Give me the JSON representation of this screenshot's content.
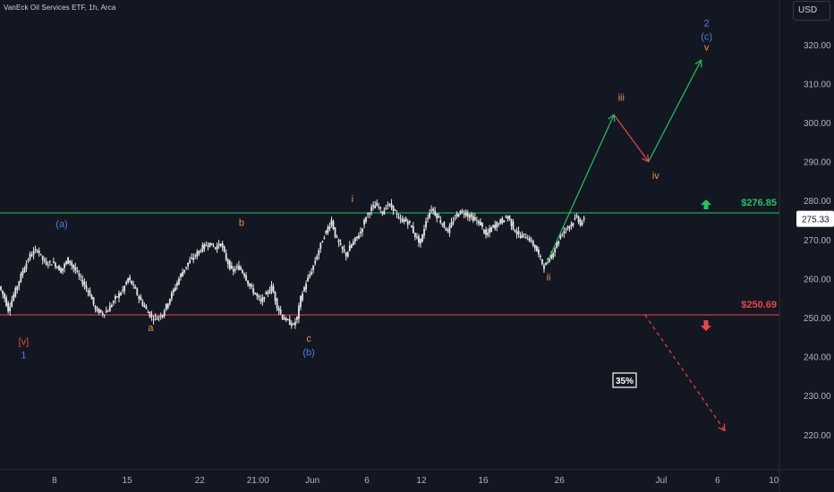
{
  "header": {
    "title": "VanEck Oil Services ETF, 1h, Arca",
    "currency": "USD"
  },
  "chart_data": {
    "type": "candlestick",
    "price_range": [
      212,
      328
    ],
    "y_ticks": [
      "220.00",
      "230.00",
      "240.00",
      "250.00",
      "260.00",
      "270.00",
      "280.00",
      "290.00",
      "300.00",
      "310.00",
      "320.00"
    ],
    "x_ticks": [
      "8",
      "15",
      "22",
      "21:00",
      "Jun",
      "6",
      "12",
      "16",
      "26",
      "Jul",
      "6",
      "10"
    ],
    "current_price": "275.33",
    "levels": [
      {
        "label": "$276.85",
        "value": 276.85,
        "color": "#22c55e"
      },
      {
        "label": "$250.69",
        "value": 250.69,
        "color": "#ef4444"
      }
    ],
    "price_path": [
      [
        0,
        258
      ],
      [
        0.3,
        255
      ],
      [
        0.5,
        252
      ],
      [
        0.9,
        257
      ],
      [
        1.3,
        262
      ],
      [
        1.7,
        266
      ],
      [
        2.1,
        267.5
      ],
      [
        2.5,
        264
      ],
      [
        3.0,
        264
      ],
      [
        3.4,
        262
      ],
      [
        3.8,
        265
      ],
      [
        4.2,
        262
      ],
      [
        4.6,
        259
      ],
      [
        5.0,
        256
      ],
      [
        5.3,
        252
      ],
      [
        5.7,
        251
      ],
      [
        6.0,
        252
      ],
      [
        6.4,
        255
      ],
      [
        6.8,
        257
      ],
      [
        7.1,
        260
      ],
      [
        7.4,
        258
      ],
      [
        7.7,
        255
      ],
      [
        8.1,
        252
      ],
      [
        8.4,
        250
      ],
      [
        8.7,
        250
      ],
      [
        9.0,
        251
      ],
      [
        9.3,
        254
      ],
      [
        9.7,
        258
      ],
      [
        10.0,
        261
      ],
      [
        10.4,
        264
      ],
      [
        10.8,
        266
      ],
      [
        11.2,
        268
      ],
      [
        11.5,
        269
      ],
      [
        11.9,
        268
      ],
      [
        12.2,
        269
      ],
      [
        12.5,
        265
      ],
      [
        12.8,
        262
      ],
      [
        13.2,
        263
      ],
      [
        13.5,
        261
      ],
      [
        13.8,
        258
      ],
      [
        14.1,
        256
      ],
      [
        14.4,
        254
      ],
      [
        14.7,
        256
      ],
      [
        15.0,
        258
      ],
      [
        15.3,
        253
      ],
      [
        15.6,
        250
      ],
      [
        15.9,
        249
      ],
      [
        16.2,
        248
      ],
      [
        16.4,
        250
      ],
      [
        16.6,
        255
      ],
      [
        16.9,
        259
      ],
      [
        17.2,
        262
      ],
      [
        17.5,
        266
      ],
      [
        17.8,
        270
      ],
      [
        18.1,
        273
      ],
      [
        18.3,
        275
      ],
      [
        18.5,
        271
      ],
      [
        18.8,
        268
      ],
      [
        19.1,
        266
      ],
      [
        19.3,
        268
      ],
      [
        19.6,
        270
      ],
      [
        19.9,
        272
      ],
      [
        20.2,
        276
      ],
      [
        20.5,
        278
      ],
      [
        20.8,
        279
      ],
      [
        21.1,
        277
      ],
      [
        21.4,
        279
      ],
      [
        21.7,
        278
      ],
      [
        22.0,
        275
      ],
      [
        22.3,
        275
      ],
      [
        22.6,
        274
      ],
      [
        22.9,
        271
      ],
      [
        23.2,
        269
      ],
      [
        23.5,
        275
      ],
      [
        23.8,
        278
      ],
      [
        24.1,
        276
      ],
      [
        24.4,
        274
      ],
      [
        24.7,
        272
      ],
      [
        25.0,
        275
      ],
      [
        25.3,
        277
      ],
      [
        25.6,
        277
      ],
      [
        25.9,
        276
      ],
      [
        26.2,
        275
      ],
      [
        26.5,
        274
      ],
      [
        26.8,
        271
      ],
      [
        27.1,
        273
      ],
      [
        27.4,
        274
      ],
      [
        27.7,
        275
      ],
      [
        28.0,
        276
      ],
      [
        28.3,
        273
      ],
      [
        28.6,
        271
      ],
      [
        28.9,
        271
      ],
      [
        29.2,
        270
      ],
      [
        29.5,
        268
      ],
      [
        29.8,
        265
      ],
      [
        30.0,
        263
      ],
      [
        30.3,
        265
      ],
      [
        30.6,
        268
      ],
      [
        30.9,
        271
      ],
      [
        31.2,
        273
      ],
      [
        31.5,
        274
      ],
      [
        31.8,
        276
      ],
      [
        32.0,
        274
      ],
      [
        32.2,
        275
      ]
    ],
    "hour_ticks": {
      "8": 3,
      "15": 7,
      "22": 11,
      "21:00": 14.2,
      "Jun": 17.2,
      "6": 20.2,
      "12": 23.2,
      "16": 26.6,
      "26": 30.8,
      "Jul": 36.4,
      "6b": 39.5,
      "10": 42.6
    },
    "projections": [
      {
        "type": "path",
        "color": "#22c55e",
        "points": [
          [
            30.1,
            264
          ],
          [
            33.8,
            302
          ]
        ]
      },
      {
        "type": "path",
        "color": "#ef4444",
        "points": [
          [
            33.8,
            302
          ],
          [
            35.7,
            290
          ]
        ]
      },
      {
        "type": "path",
        "color": "#22c55e",
        "points": [
          [
            35.7,
            290
          ],
          [
            38.6,
            316
          ]
        ]
      },
      {
        "type": "dashed",
        "color": "#ef4444",
        "points": [
          [
            35.5,
            250.7
          ],
          [
            39.9,
            221
          ]
        ]
      }
    ],
    "waves": [
      {
        "text": "[v]",
        "color": "#ef4444",
        "x": 1.3,
        "y": 243.0
      },
      {
        "text": "1",
        "color": "#4d7ee0",
        "x": 1.3,
        "y": 239.6
      },
      {
        "text": "(a)",
        "color": "#4d7ee0",
        "x": 3.4,
        "y": 273.2
      },
      {
        "text": "a",
        "color": "#f0923b",
        "x": 8.3,
        "y": 246.6
      },
      {
        "text": "b",
        "color": "#f0923b",
        "x": 13.3,
        "y": 273.5
      },
      {
        "text": "c",
        "color": "#f0923b",
        "x": 17.0,
        "y": 243.8
      },
      {
        "text": "(b)",
        "color": "#4d7ee0",
        "x": 17.0,
        "y": 240.2
      },
      {
        "text": "i",
        "color": "#f0923b",
        "x": 19.4,
        "y": 279.6
      },
      {
        "text": "ii",
        "color": "#f0923b",
        "x": 30.2,
        "y": 259.5
      },
      {
        "text": "iii",
        "color": "#f0923b",
        "x": 34.2,
        "y": 305.6
      },
      {
        "text": "iv",
        "color": "#f0923b",
        "x": 36.1,
        "y": 285.5
      },
      {
        "text": "v",
        "color": "#f0923b",
        "x": 38.9,
        "y": 318.5
      },
      {
        "text": "(c)",
        "color": "#4d7ee0",
        "x": 38.9,
        "y": 321.2
      },
      {
        "text": "2",
        "color": "#4d7ee0",
        "x": 38.9,
        "y": 324.7
      }
    ],
    "probability_badge": "35%"
  },
  "colors": {
    "background": "#131722",
    "grid": "#1f2230",
    "candle": "#e6e6e6",
    "support": "#ef4444",
    "resistance": "#22c55e"
  }
}
